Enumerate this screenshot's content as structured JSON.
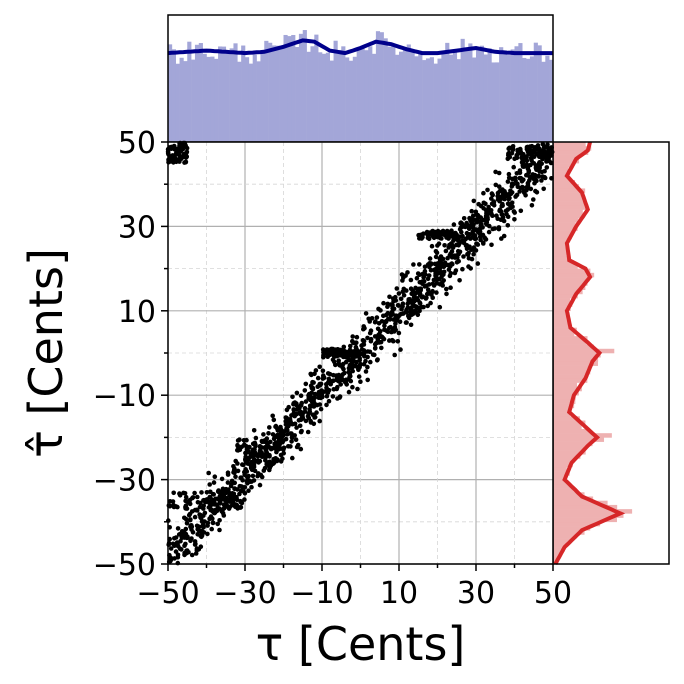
{
  "chart_data": [
    {
      "type": "scatter",
      "xlabel": "τ [Cents]",
      "ylabel": "τ̂ [Cents]",
      "xlim": [
        -50,
        50
      ],
      "ylim": [
        -50,
        50
      ],
      "xticks": [
        -50,
        -30,
        -10,
        10,
        30,
        50
      ],
      "yticks": [
        -50,
        -30,
        -10,
        10,
        30,
        50
      ],
      "xtick_labels": [
        "−50",
        "−30",
        "−10",
        "10",
        "30",
        "50"
      ],
      "ytick_labels": [
        "−50",
        "−30",
        "−10",
        "10",
        "30",
        "50"
      ],
      "grid": true,
      "minor_grid": true,
      "point_color": "#000000",
      "trend": {
        "slope": 0.97,
        "intercept": 0,
        "spread": 3.2
      },
      "clusters": [
        {
          "x": [
            -50,
            -45
          ],
          "y": [
            45,
            50
          ]
        },
        {
          "x": [
            -50,
            -30
          ],
          "y": [
            -37,
            -33
          ]
        },
        {
          "x": [
            -32,
            -20
          ],
          "y": [
            -26,
            -20
          ]
        },
        {
          "x": [
            -10,
            0
          ],
          "y": [
            -1,
            1
          ]
        },
        {
          "x": [
            15,
            25
          ],
          "y": [
            27,
            29
          ]
        },
        {
          "x": [
            38,
            50
          ],
          "y": [
            46,
            49
          ]
        }
      ]
    },
    {
      "type": "bar",
      "position": "top",
      "xlim": [
        -50,
        50
      ],
      "bar_color": "#a3a6d8",
      "kde_color": "#00008b",
      "kde": {
        "x": [
          -50,
          -45,
          -40,
          -35,
          -30,
          -25,
          -20,
          -15,
          -12,
          -8,
          -4,
          0,
          4,
          8,
          12,
          16,
          20,
          25,
          30,
          35,
          40,
          45,
          50
        ],
        "y": [
          0.7,
          0.71,
          0.72,
          0.71,
          0.7,
          0.71,
          0.75,
          0.8,
          0.79,
          0.72,
          0.7,
          0.74,
          0.79,
          0.77,
          0.73,
          0.7,
          0.7,
          0.72,
          0.74,
          0.71,
          0.7,
          0.7,
          0.7
        ]
      }
    },
    {
      "type": "bar",
      "position": "right",
      "ylim": [
        -50,
        50
      ],
      "bar_color": "#eeb1b1",
      "kde_color": "#d62728",
      "kde": {
        "y": [
          -50,
          -46,
          -42,
          -38,
          -34,
          -30,
          -26,
          -22,
          -20,
          -18,
          -14,
          -10,
          -6,
          -2,
          0,
          2,
          6,
          10,
          14,
          18,
          20,
          22,
          26,
          30,
          34,
          38,
          42,
          46,
          48,
          50
        ],
        "x": [
          0.02,
          0.1,
          0.25,
          0.58,
          0.25,
          0.1,
          0.16,
          0.3,
          0.38,
          0.3,
          0.14,
          0.18,
          0.28,
          0.34,
          0.4,
          0.32,
          0.15,
          0.12,
          0.2,
          0.32,
          0.28,
          0.14,
          0.12,
          0.2,
          0.3,
          0.25,
          0.12,
          0.2,
          0.3,
          0.32
        ]
      }
    }
  ]
}
